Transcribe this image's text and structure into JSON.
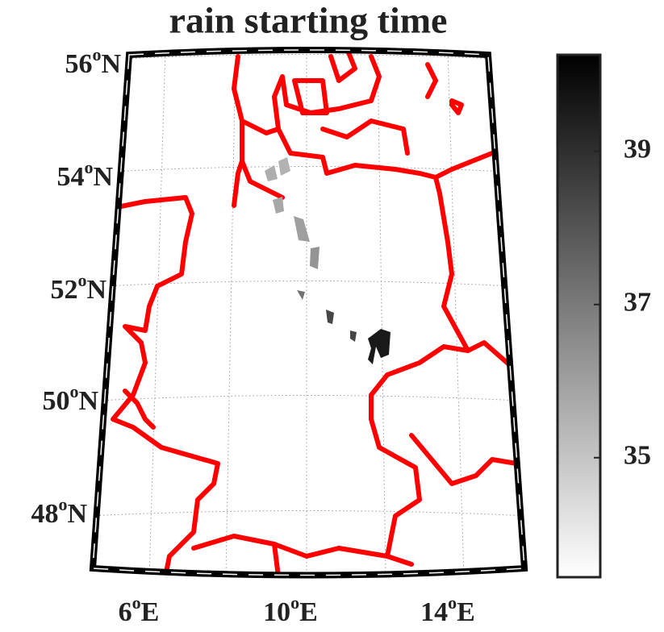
{
  "chart_data": {
    "type": "map",
    "title": "rain starting time",
    "degree_sign": "o",
    "lat_labels": [
      {
        "value": 56,
        "hemisphere": "N"
      },
      {
        "value": 54,
        "hemisphere": "N"
      },
      {
        "value": 52,
        "hemisphere": "N"
      },
      {
        "value": 50,
        "hemisphere": "N"
      },
      {
        "value": 48,
        "hemisphere": "N"
      }
    ],
    "lon_labels": [
      {
        "value": 6,
        "hemisphere": "E"
      },
      {
        "value": 10,
        "hemisphere": "E"
      },
      {
        "value": 14,
        "hemisphere": "E"
      }
    ],
    "rain_values": [
      35.6,
      35.5,
      35.8,
      36.0,
      36.3,
      37.2,
      38.4,
      39.6
    ],
    "colorbar": {
      "ylim": [
        33.44,
        40.26
      ],
      "yticks": [
        35,
        37,
        39
      ],
      "colors": [
        "#ffffff",
        "#000000"
      ]
    }
  }
}
